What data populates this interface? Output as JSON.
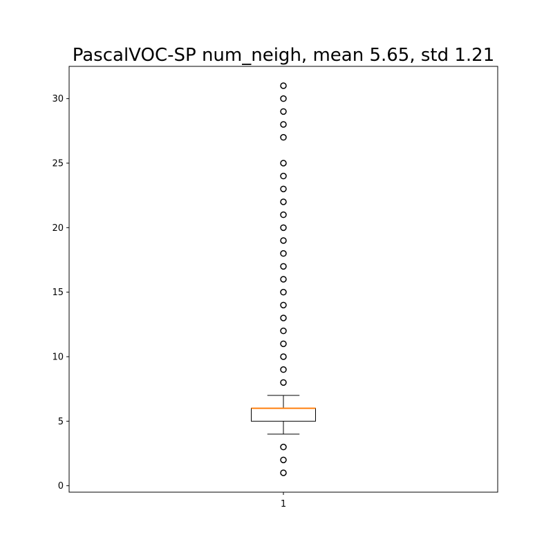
{
  "chart_data": {
    "type": "boxplot",
    "title": "PascalVOC-SP num_neigh, mean 5.65, std 1.21",
    "xlabel": "",
    "ylabel": "",
    "ylim": [
      -0.5,
      32.5
    ],
    "yticks": [
      0,
      5,
      10,
      15,
      20,
      25,
      30
    ],
    "categories": [
      "1"
    ],
    "grid": false,
    "boxes": [
      {
        "category": "1",
        "whisker_low": 4,
        "q1": 5,
        "median": 6,
        "q3": 6,
        "whisker_high": 7,
        "outliers": [
          1,
          2,
          3,
          8,
          9,
          10,
          11,
          12,
          13,
          14,
          15,
          16,
          17,
          18,
          19,
          20,
          21,
          22,
          23,
          24,
          25,
          27,
          28,
          29,
          30,
          31
        ]
      }
    ],
    "colors": {
      "box": "#000000",
      "median": "#ff7f0e",
      "outlier_edge": "#000000"
    }
  }
}
